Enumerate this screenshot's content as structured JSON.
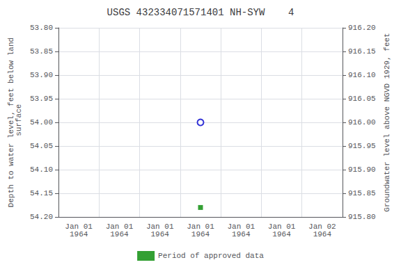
{
  "chart_data": {
    "type": "scatter",
    "title": "USGS 432334071571401 NH-SYW    4",
    "ylabel": "Depth to water level, feet below land\n surface",
    "y2label": "Groundwater level above NGVD 1929, feet",
    "categories": [
      "Jan 01\n1964",
      "Jan 01\n1964",
      "Jan 01\n1964",
      "Jan 01\n1964",
      "Jan 01\n1964",
      "Jan 01\n1964",
      "Jan 02\n1964"
    ],
    "series": [
      {
        "color": "#0000cc",
        "marker": "circle_open",
        "values": [
          null,
          null,
          null,
          54.0,
          null,
          null,
          null
        ]
      },
      {
        "name": "Period of approved data",
        "color": "#008800",
        "marker": "square",
        "values": [
          null,
          null,
          null,
          54.18,
          null,
          null,
          null
        ]
      }
    ],
    "ylim": [
      54.2,
      53.8
    ],
    "yticks": [
      {
        "value": 53.8,
        "label": "53.80"
      },
      53.85,
      {
        "value": 53.9,
        "label": "53.90"
      },
      53.95,
      {
        "value": 54.0,
        "label": "54.00"
      },
      54.05,
      {
        "value": 54.1,
        "label": "54.10"
      },
      54.15,
      {
        "value": 54.2,
        "label": "54.20"
      }
    ],
    "y2lim": [
      915.8,
      916.2
    ],
    "y2ticks": [
      {
        "value": 916.2,
        "label": "916.20"
      },
      916.15,
      {
        "value": 916.1,
        "label": "916.10"
      },
      916.05,
      {
        "value": 916.0,
        "label": "916.00"
      },
      915.95,
      {
        "value": 915.9,
        "label": "915.90"
      },
      915.85,
      {
        "value": 915.8,
        "label": "915.80"
      }
    ],
    "grid": true,
    "legend": "bottom"
  }
}
